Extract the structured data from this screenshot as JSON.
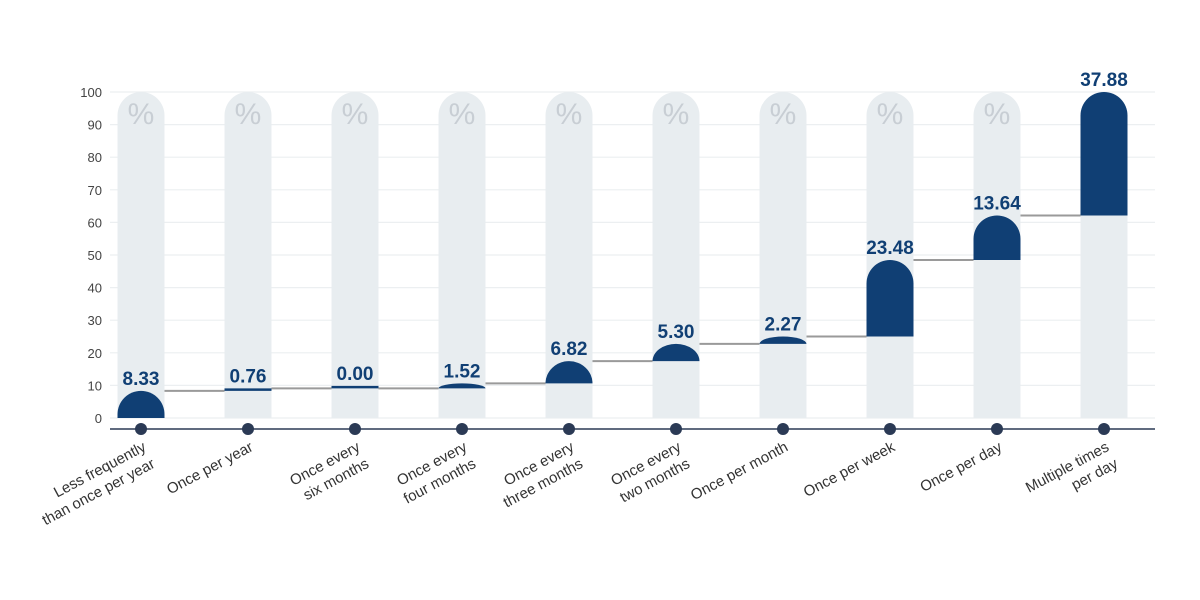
{
  "chart_data": {
    "type": "bar",
    "subtype": "waterfall",
    "categories": [
      [
        "Less frequently",
        "than once per year"
      ],
      [
        "Once per year"
      ],
      [
        "Once every",
        "six months"
      ],
      [
        "Once every",
        "four months"
      ],
      [
        "Once every",
        "three months"
      ],
      [
        "Once every",
        "two months"
      ],
      [
        "Once per month"
      ],
      [
        "Once per week"
      ],
      [
        "Once per day"
      ],
      [
        "Multiple times",
        "per day"
      ]
    ],
    "values": [
      8.33,
      0.76,
      0.0,
      1.52,
      6.82,
      5.3,
      2.27,
      23.48,
      13.64,
      37.88
    ],
    "value_labels": [
      "8.33",
      "0.76",
      "0.00",
      "1.52",
      "6.82",
      "5.30",
      "2.27",
      "23.48",
      "13.64",
      "37.88"
    ],
    "column_symbol": "%",
    "ylim": [
      0,
      100
    ],
    "yticks": [
      0,
      10,
      20,
      30,
      40,
      50,
      60,
      70,
      80,
      90,
      100
    ],
    "grid": true,
    "colors": {
      "bar": "#103f74",
      "track": "#e8edf0",
      "connector": "#9a9a9a",
      "grid": "#eceff1",
      "axis": "#2b3a55",
      "value_text": "#103f74",
      "symbol": "#c8ced4"
    }
  }
}
